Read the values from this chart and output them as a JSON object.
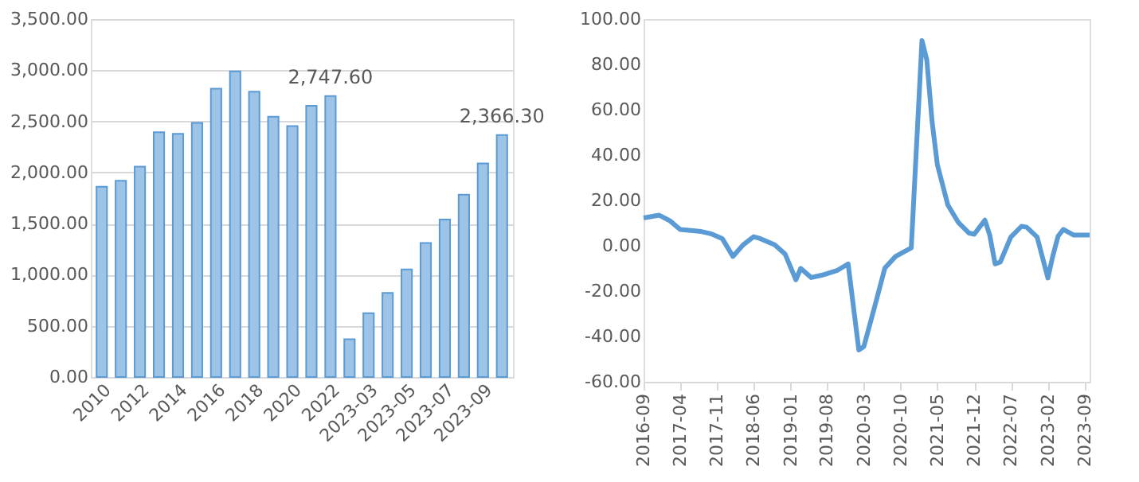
{
  "chart_data": [
    {
      "type": "bar",
      "categories": [
        "2010",
        null,
        "2012",
        null,
        "2014",
        null,
        "2016",
        null,
        "2018",
        null,
        "2020",
        null,
        "2022",
        null,
        "2023-03",
        null,
        "2023-05",
        null,
        "2023-07",
        null,
        "2023-09",
        null
      ],
      "values": [
        1860,
        1920,
        2058,
        2393,
        2378,
        2485,
        2820,
        2988,
        2790,
        2546,
        2454,
        2652,
        2747.6,
        370,
        625,
        823,
        1052,
        1311,
        1540,
        1784,
        2088,
        2366.3
      ],
      "value_labels": [
        null,
        null,
        null,
        null,
        null,
        null,
        null,
        null,
        null,
        null,
        null,
        null,
        "2,747.60",
        null,
        null,
        null,
        null,
        null,
        null,
        null,
        null,
        "2,366.30"
      ],
      "color": "#9dc3e6",
      "ylim": [
        0,
        3500
      ],
      "yticks": [
        {
          "value": 0,
          "label": "0.00"
        },
        {
          "value": 500,
          "label": "500.00"
        },
        {
          "value": 1000,
          "label": "1,000.00"
        },
        {
          "value": 1500,
          "label": "1,500.00"
        },
        {
          "value": 2000,
          "label": "2,000.00"
        },
        {
          "value": 2500,
          "label": "2,500.00"
        },
        {
          "value": 3000,
          "label": "3,000.00"
        },
        {
          "value": 3500,
          "label": "3,500.00"
        }
      ],
      "grid": "y"
    },
    {
      "type": "line",
      "x": [
        "2016-09",
        "2016-12",
        "2017-02",
        "2017-04",
        "2017-08",
        "2017-10",
        "2017-12",
        "2018-02",
        "2018-04",
        "2018-06",
        "2018-07",
        "2018-10",
        "2018-12",
        "2019-02",
        "2019-03",
        "2019-05",
        "2019-07",
        "2019-10",
        "2019-12",
        "2020-02",
        "2020-03",
        "2020-05",
        "2020-07",
        "2020-09",
        "2020-12",
        "2021-02",
        "2021-03",
        "2021-04",
        "2021-05",
        "2021-07",
        "2021-09",
        "2021-11",
        "2021-12",
        "2022-02",
        "2022-03",
        "2022-04",
        "2022-05",
        "2022-07",
        "2022-09",
        "2022-10",
        "2022-12",
        "2023-02",
        "2023-03",
        "2023-04",
        "2023-05",
        "2023-07",
        "2023-09",
        "2023-10"
      ],
      "values": [
        12.3,
        13.5,
        11,
        7.2,
        6.3,
        5.2,
        3.2,
        -4.7,
        0.4,
        4,
        3.4,
        0.4,
        -3.7,
        -15,
        -10,
        -14,
        -13,
        -10.8,
        -8,
        -46,
        -44.5,
        -27.4,
        -9.8,
        -4.7,
        -0.9,
        90.5,
        82,
        54.6,
        35.9,
        18,
        10.2,
        5.6,
        5.1,
        11.3,
        4.7,
        -8,
        -7.2,
        3.8,
        8.6,
        8.2,
        3.8,
        -14.2,
        -4.7,
        4.2,
        7.2,
        4.7,
        4.7,
        4.7
      ],
      "color": "#5b9bd5",
      "xlim": [
        "2016-09",
        "2023-10"
      ],
      "xticks": [
        {
          "value": "2016-09",
          "label": "2016-09"
        },
        {
          "value": "2017-04",
          "label": "2017-04"
        },
        {
          "value": "2017-11",
          "label": "2017-11"
        },
        {
          "value": "2018-06",
          "label": "2018-06"
        },
        {
          "value": "2019-01",
          "label": "2019-01"
        },
        {
          "value": "2019-08",
          "label": "2019-08"
        },
        {
          "value": "2020-03",
          "label": "2020-03"
        },
        {
          "value": "2020-10",
          "label": "2020-10"
        },
        {
          "value": "2021-05",
          "label": "2021-05"
        },
        {
          "value": "2021-12",
          "label": "2021-12"
        },
        {
          "value": "2022-07",
          "label": "2022-07"
        },
        {
          "value": "2023-02",
          "label": "2023-02"
        },
        {
          "value": "2023-09",
          "label": "2023-09"
        }
      ],
      "ylim": [
        -60,
        100
      ],
      "yticks": [
        {
          "value": -60,
          "label": "-60.00"
        },
        {
          "value": -40,
          "label": "-40.00"
        },
        {
          "value": -20,
          "label": "-20.00"
        },
        {
          "value": 0,
          "label": "0.00"
        },
        {
          "value": 20,
          "label": "20.00"
        },
        {
          "value": 40,
          "label": "40.00"
        },
        {
          "value": 60,
          "label": "60.00"
        },
        {
          "value": 80,
          "label": "80.00"
        },
        {
          "value": 100,
          "label": "100.00"
        }
      ],
      "grid": false
    }
  ]
}
